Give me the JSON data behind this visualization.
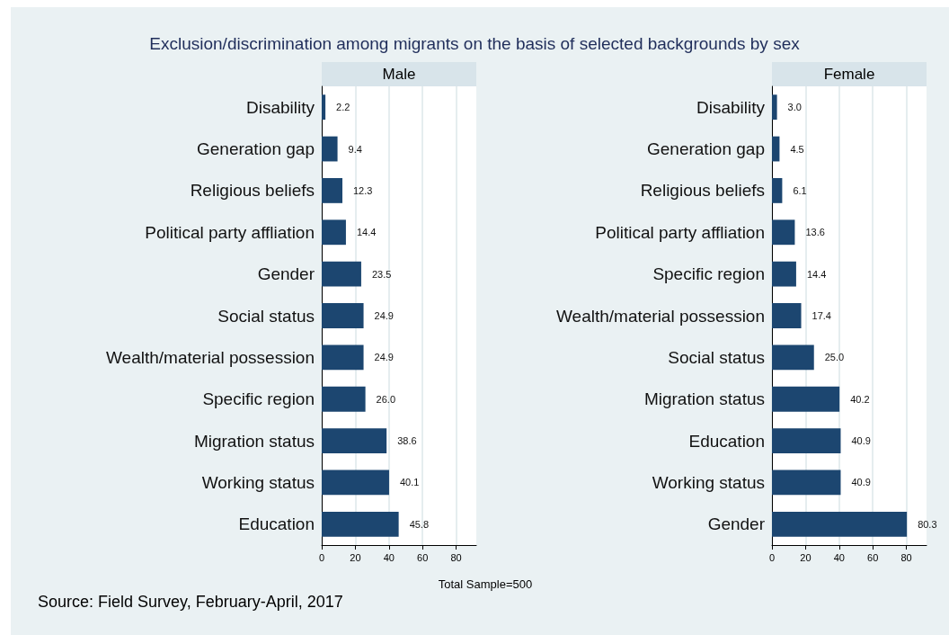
{
  "chart_data": [
    {
      "type": "bar",
      "orientation": "horizontal",
      "title": "Exclusion/discrimination among migrants on the basis of selected backgrounds by sex",
      "subtitle": "Male",
      "categories": [
        "Disability",
        "Generation gap",
        "Religious beliefs",
        "Political party affliation",
        "Gender",
        "Social status",
        "Wealth/material possession",
        "Specific region",
        "Migration status",
        "Working status",
        "Education"
      ],
      "values": [
        2.2,
        9.4,
        12.3,
        14.4,
        23.5,
        24.9,
        24.9,
        26.0,
        38.6,
        40.1,
        45.8
      ],
      "value_labels": [
        "2.2",
        "9.4",
        "12.3",
        "14.4",
        "23.5",
        "24.9",
        "24.9",
        "26.0",
        "38.6",
        "40.1",
        "45.8"
      ],
      "color": "#1c4670",
      "xlim": [
        0,
        92
      ],
      "xticks": [
        0,
        20,
        40,
        60,
        80
      ],
      "grid": "x",
      "annotations": [
        "Total Sample=500",
        "Source: Field Survey, February-April, 2017"
      ]
    },
    {
      "type": "bar",
      "orientation": "horizontal",
      "subtitle": "Female",
      "categories": [
        "Disability",
        "Generation gap",
        "Religious beliefs",
        "Political party affliation",
        "Specific region",
        "Wealth/material possession",
        "Social status",
        "Migration status",
        "Education",
        "Working status",
        "Gender"
      ],
      "values": [
        3.0,
        4.5,
        6.1,
        13.6,
        14.4,
        17.4,
        25.0,
        40.2,
        40.9,
        40.9,
        80.3
      ],
      "value_labels": [
        "3.0",
        "4.5",
        "6.1",
        "13.6",
        "14.4",
        "17.4",
        "25.0",
        "40.2",
        "40.9",
        "40.9",
        "80.3"
      ],
      "color": "#1c4670",
      "xlim": [
        0,
        92
      ],
      "xticks": [
        0,
        20,
        40,
        60,
        80
      ],
      "grid": "x"
    }
  ]
}
